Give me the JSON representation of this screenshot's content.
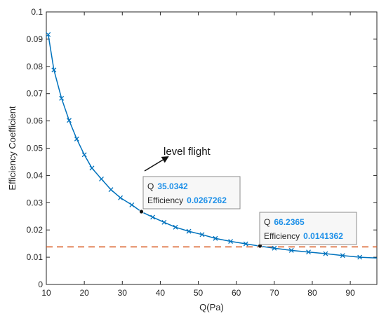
{
  "chart_data": {
    "type": "line",
    "xlabel": "Q(Pa)",
    "ylabel": "Efficiency Coefficient",
    "xlim": [
      10,
      97
    ],
    "ylim": [
      0,
      0.1
    ],
    "xticks": [
      10,
      20,
      30,
      40,
      50,
      60,
      70,
      80,
      90
    ],
    "yticks": [
      0,
      0.01,
      0.02,
      0.03,
      0.04,
      0.05,
      0.06,
      0.07,
      0.08,
      0.09,
      0.1
    ],
    "xtick_labels": [
      "10",
      "20",
      "30",
      "40",
      "50",
      "60",
      "70",
      "80",
      "90"
    ],
    "ytick_labels": [
      "0",
      "0.01",
      "0.02",
      "0.03",
      "0.04",
      "0.05",
      "0.06",
      "0.07",
      "0.08",
      "0.09",
      "0.1"
    ],
    "grid": false,
    "series": [
      {
        "color": "#0072BD",
        "marker": "x",
        "x": [
          10.5,
          12,
          14,
          16,
          18,
          20,
          22,
          24.5,
          27,
          29.5,
          32.5,
          35,
          38,
          41,
          44,
          47.5,
          51,
          54.5,
          58.5,
          62.5,
          66,
          70,
          74.5,
          79,
          83.5,
          88,
          92.5,
          97
        ],
        "y": [
          0.0917,
          0.0787,
          0.0683,
          0.0602,
          0.0534,
          0.0476,
          0.0427,
          0.0387,
          0.0348,
          0.0318,
          0.0292,
          0.0267,
          0.0247,
          0.0228,
          0.021,
          0.0195,
          0.0183,
          0.0169,
          0.0158,
          0.0149,
          0.0141,
          0.0133,
          0.0125,
          0.0119,
          0.0113,
          0.0106,
          0.01,
          0.0097
        ],
        "marker_x": [
          10.5,
          12,
          14,
          16,
          18,
          20,
          22,
          24.5,
          27,
          29.5,
          32.5,
          38,
          41,
          44,
          47.5,
          51,
          54.5,
          58.5,
          62.5,
          70,
          74.5,
          79,
          83.5,
          88,
          92.5
        ],
        "marker_y": [
          0.0917,
          0.0787,
          0.0683,
          0.0602,
          0.0534,
          0.0476,
          0.0427,
          0.0387,
          0.0348,
          0.0318,
          0.0292,
          0.0247,
          0.0228,
          0.021,
          0.0195,
          0.0183,
          0.0169,
          0.0158,
          0.0149,
          0.0133,
          0.0125,
          0.0119,
          0.0113,
          0.0106,
          0.01
        ]
      }
    ],
    "reference_line": {
      "y": 0.0138,
      "color": "#D95319",
      "style": "dashed"
    },
    "annotation": {
      "text": "level flight"
    },
    "datatips": [
      {
        "x": 35.0342,
        "y": 0.0267262,
        "q_label": "Q",
        "q_value": "35.0342",
        "eff_label": "Efficiency",
        "eff_value": "0.0267262"
      },
      {
        "x": 66.2365,
        "y": 0.0141362,
        "q_label": "Q",
        "q_value": "66.2365",
        "eff_label": "Efficiency",
        "eff_value": "0.0141362"
      }
    ]
  }
}
